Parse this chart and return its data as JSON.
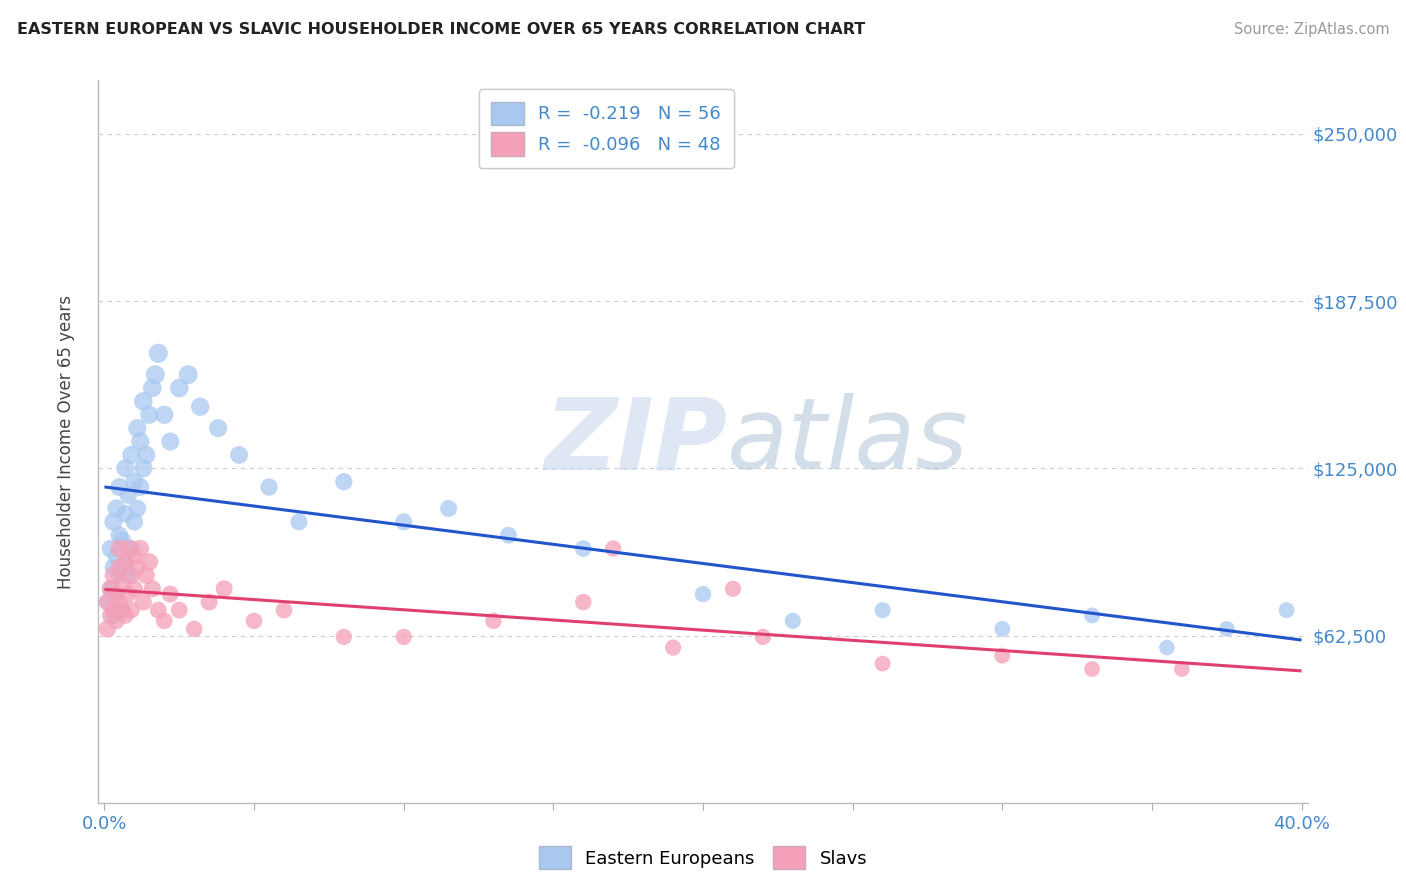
{
  "title": "EASTERN EUROPEAN VS SLAVIC HOUSEHOLDER INCOME OVER 65 YEARS CORRELATION CHART",
  "source": "Source: ZipAtlas.com",
  "ylabel": "Householder Income Over 65 years",
  "xlabel": "",
  "xlim": [
    -0.002,
    0.402
  ],
  "ylim": [
    0,
    270000
  ],
  "yticks": [
    62500,
    125000,
    187500,
    250000
  ],
  "ytick_labels": [
    "$62,500",
    "$125,000",
    "$187,500",
    "$250,000"
  ],
  "xticks": [
    0.0,
    0.05,
    0.1,
    0.15,
    0.2,
    0.25,
    0.3,
    0.35,
    0.4
  ],
  "xtick_labels": [
    "0.0%",
    "",
    "",
    "",
    "",
    "",
    "",
    "",
    "40.0%"
  ],
  "background_color": "#ffffff",
  "watermark_zip": "ZIP",
  "watermark_atlas": "atlas",
  "legend_blue_r": "-0.219",
  "legend_blue_n": "56",
  "legend_pink_r": "-0.096",
  "legend_pink_n": "48",
  "blue_color": "#A8C8F0",
  "pink_color": "#F4A0B8",
  "blue_line_color": "#2255CC",
  "pink_line_color": "#E04070",
  "tick_color": "#4488CC",
  "grid_color": "#cccccc",
  "eastern_x": [
    0.001,
    0.002,
    0.002,
    0.003,
    0.003,
    0.003,
    0.004,
    0.004,
    0.004,
    0.005,
    0.005,
    0.005,
    0.006,
    0.006,
    0.007,
    0.007,
    0.007,
    0.008,
    0.008,
    0.009,
    0.009,
    0.01,
    0.01,
    0.011,
    0.011,
    0.012,
    0.012,
    0.013,
    0.013,
    0.014,
    0.015,
    0.016,
    0.017,
    0.018,
    0.02,
    0.022,
    0.025,
    0.028,
    0.032,
    0.038,
    0.045,
    0.055,
    0.065,
    0.08,
    0.1,
    0.115,
    0.135,
    0.16,
    0.2,
    0.23,
    0.26,
    0.3,
    0.33,
    0.355,
    0.375,
    0.395
  ],
  "eastern_y": [
    75000,
    80000,
    95000,
    70000,
    88000,
    105000,
    78000,
    92000,
    110000,
    85000,
    100000,
    118000,
    72000,
    98000,
    90000,
    108000,
    125000,
    85000,
    115000,
    95000,
    130000,
    105000,
    120000,
    110000,
    140000,
    118000,
    135000,
    125000,
    150000,
    130000,
    145000,
    155000,
    160000,
    168000,
    145000,
    135000,
    155000,
    160000,
    148000,
    140000,
    130000,
    118000,
    105000,
    120000,
    105000,
    110000,
    100000,
    95000,
    78000,
    68000,
    72000,
    65000,
    70000,
    58000,
    65000,
    72000
  ],
  "slavs_x": [
    0.001,
    0.001,
    0.002,
    0.002,
    0.003,
    0.003,
    0.004,
    0.004,
    0.005,
    0.005,
    0.005,
    0.006,
    0.006,
    0.007,
    0.007,
    0.008,
    0.008,
    0.009,
    0.009,
    0.01,
    0.01,
    0.011,
    0.012,
    0.013,
    0.014,
    0.015,
    0.016,
    0.018,
    0.02,
    0.022,
    0.025,
    0.03,
    0.035,
    0.04,
    0.05,
    0.06,
    0.08,
    0.1,
    0.13,
    0.16,
    0.19,
    0.22,
    0.26,
    0.3,
    0.33,
    0.36,
    0.17,
    0.21
  ],
  "slavs_y": [
    65000,
    75000,
    70000,
    80000,
    72000,
    85000,
    68000,
    78000,
    75000,
    88000,
    95000,
    72000,
    82000,
    70000,
    90000,
    78000,
    95000,
    72000,
    85000,
    80000,
    92000,
    88000,
    95000,
    75000,
    85000,
    90000,
    80000,
    72000,
    68000,
    78000,
    72000,
    65000,
    75000,
    80000,
    68000,
    72000,
    62000,
    62000,
    68000,
    75000,
    58000,
    62000,
    52000,
    55000,
    50000,
    50000,
    95000,
    80000
  ],
  "eastern_sizes": [
    150,
    150,
    160,
    150,
    160,
    170,
    150,
    160,
    170,
    150,
    160,
    170,
    140,
    160,
    150,
    160,
    170,
    150,
    160,
    160,
    170,
    160,
    170,
    160,
    175,
    165,
    175,
    170,
    180,
    170,
    175,
    180,
    185,
    190,
    175,
    170,
    180,
    185,
    175,
    170,
    165,
    155,
    150,
    155,
    150,
    150,
    145,
    145,
    140,
    135,
    135,
    130,
    130,
    125,
    128,
    130
  ],
  "slavs_sizes": [
    160,
    150,
    150,
    160,
    150,
    160,
    145,
    155,
    150,
    160,
    170,
    145,
    155,
    145,
    160,
    150,
    160,
    145,
    155,
    150,
    160,
    160,
    160,
    150,
    155,
    160,
    155,
    148,
    145,
    150,
    148,
    142,
    148,
    150,
    142,
    145,
    138,
    138,
    140,
    140,
    135,
    138,
    130,
    132,
    128,
    128,
    140,
    138
  ]
}
